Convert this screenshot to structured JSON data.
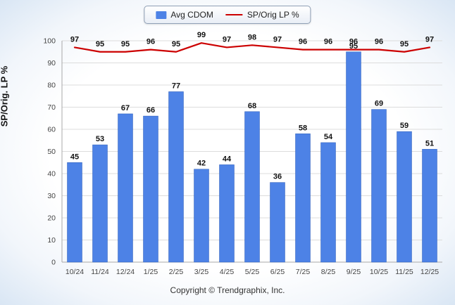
{
  "legend": {
    "bar_label": "Avg CDOM",
    "line_label": "SP/Orig LP %"
  },
  "ylabel": "SP/Orig. LP %",
  "copyright": "Copyright © Trendgraphix, Inc.",
  "colors": {
    "bar": "#4d82e6",
    "line": "#cc0000",
    "grid": "#dcdcdc",
    "axis": "#a8a8a8",
    "tick_text": "#444444",
    "data_label": "#111111"
  },
  "chart_data": {
    "type": "bar+line",
    "title": "",
    "xlabel": "",
    "ylabel": "SP/Orig. LP %",
    "ylim": [
      0,
      100
    ],
    "ytick_step": 10,
    "grid": true,
    "legend_position": "top",
    "categories": [
      "10/24",
      "11/24",
      "12/24",
      "1/25",
      "2/25",
      "3/25",
      "4/25",
      "5/25",
      "6/25",
      "7/25",
      "8/25",
      "9/25",
      "10/25",
      "11/25",
      "12/25"
    ],
    "series": [
      {
        "name": "Avg CDOM",
        "type": "bar",
        "values": [
          45,
          53,
          67,
          66,
          77,
          42,
          44,
          68,
          36,
          58,
          54,
          95,
          69,
          59,
          51
        ]
      },
      {
        "name": "SP/Orig LP %",
        "type": "line",
        "values": [
          97,
          95,
          95,
          96,
          95,
          99,
          97,
          98,
          97,
          96,
          96,
          96,
          96,
          95,
          97
        ]
      }
    ]
  }
}
